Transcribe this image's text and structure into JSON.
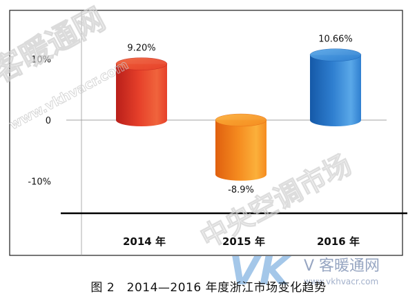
{
  "chart_data": {
    "type": "bar",
    "title": "",
    "xlabel": "",
    "ylabel": "",
    "categories": [
      "2014 年",
      "2015 年",
      "2016 年"
    ],
    "values": [
      9.2,
      -8.9,
      10.66
    ],
    "data_labels": [
      "9.20%",
      "-8.9%",
      "10.66%"
    ],
    "y_ticks": [
      {
        "value": 10,
        "label": "10%"
      },
      {
        "value": 0,
        "label": "0"
      },
      {
        "value": -10,
        "label": "-10%"
      }
    ],
    "ylim": [
      -15.5,
      15.5
    ],
    "grid": false,
    "legend": "none",
    "bar_style": "3d-cylinder",
    "colors": [
      {
        "light": "#f0643c",
        "mid": "#e6402a",
        "dark": "#b91f1a"
      },
      {
        "light": "#fbb03b",
        "mid": "#f58b1f",
        "dark": "#e0600f"
      },
      {
        "light": "#5aa8e8",
        "mid": "#2f7fd0",
        "dark": "#1559a8"
      }
    ]
  },
  "caption": "图 2　2014—2016 年度浙江市场变化趋势",
  "watermarks": {
    "brand_cn": "客暖通网",
    "site": "www.vkhvacr.com",
    "logo_letters": "VK",
    "logo_cn": "V 客暖通网",
    "logo_site": "www.vkhvacr.com",
    "overlay_cn": "中央空调市场"
  }
}
